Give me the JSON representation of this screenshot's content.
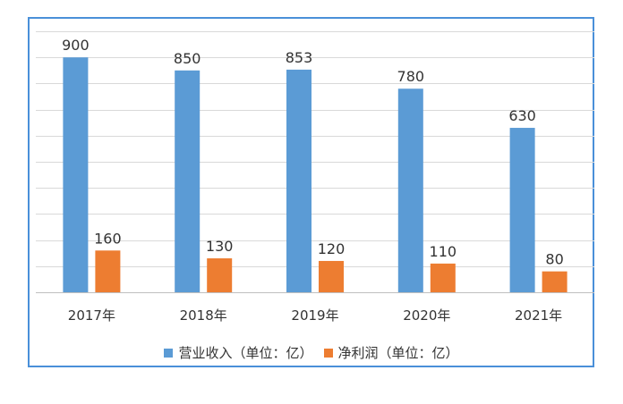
{
  "chart_data": {
    "type": "bar",
    "categories": [
      "2017年",
      "2018年",
      "2019年",
      "2020年",
      "2021年"
    ],
    "series": [
      {
        "name": "营业收入（单位：亿）",
        "values": [
          900,
          850,
          853,
          780,
          630
        ],
        "color": "#5b9bd5"
      },
      {
        "name": "净利润（单位：亿）",
        "values": [
          160,
          130,
          120,
          110,
          80
        ],
        "color": "#ed7d31"
      }
    ],
    "title": "",
    "xlabel": "",
    "ylabel": "",
    "ylim": [
      0,
      1000
    ],
    "grid": true,
    "legend_position": "bottom",
    "gridline_color": "#d9d9d9",
    "axis_color": "#bfbfbf"
  }
}
